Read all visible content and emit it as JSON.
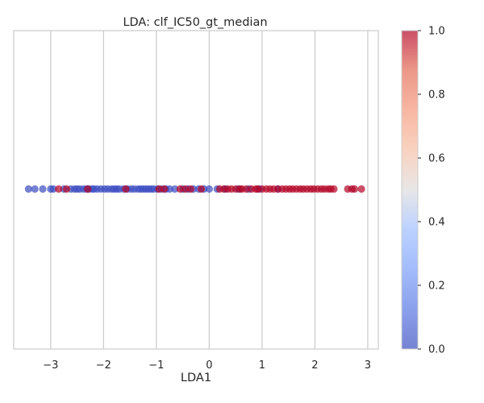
{
  "chart_data": {
    "type": "scatter",
    "title": "LDA: clf_IC50_gt_median",
    "xlabel": "LDA1",
    "ylabel": "",
    "xlim": [
      -3.7,
      3.2
    ],
    "x_ticks": [
      "−3",
      "−2",
      "−1",
      "0",
      "1",
      "2",
      "3"
    ],
    "x_tick_values": [
      -3,
      -2,
      -1,
      0,
      1,
      2,
      3
    ],
    "y_ticks": [],
    "grid": true,
    "y_constant": 0,
    "marker_alpha": 0.7,
    "colormap": "coolwarm",
    "colorbar": {
      "range": [
        0.0,
        1.0
      ],
      "ticks": [
        "0.0",
        "0.2",
        "0.4",
        "0.6",
        "0.8",
        "1.0"
      ],
      "tick_values": [
        0.0,
        0.2,
        0.4,
        0.6,
        0.8,
        1.0
      ]
    },
    "class0_color": "#3b4cc0",
    "class1_color": "#b40426",
    "series": [
      {
        "class": 0,
        "x": [
          -3.42,
          -3.3,
          -3.15,
          -3.0,
          -2.95,
          -2.75,
          -2.62,
          -2.55,
          -2.5,
          -2.45,
          -2.38,
          -2.32,
          -2.28,
          -2.22,
          -2.18,
          -2.12,
          -2.05,
          -1.98,
          -1.92,
          -1.85,
          -1.8,
          -1.75,
          -1.7,
          -1.62,
          -1.55,
          -1.48,
          -1.42,
          -1.35,
          -1.3,
          -1.25,
          -1.2,
          -1.15,
          -1.1,
          -1.05,
          -0.98,
          -0.9,
          -0.82,
          -0.75,
          -0.65,
          -0.5,
          -0.4,
          -0.3,
          -0.2,
          -0.1,
          0.0,
          0.15,
          0.3,
          0.55,
          0.75,
          0.95,
          1.3
        ]
      },
      {
        "class": 1,
        "x": [
          -2.85,
          -2.7,
          -2.3,
          -1.58,
          -0.95,
          -0.85,
          -0.55,
          -0.45,
          -0.35,
          -0.15,
          0.2,
          0.28,
          0.35,
          0.42,
          0.5,
          0.58,
          0.62,
          0.7,
          0.8,
          0.88,
          0.92,
          1.0,
          1.08,
          1.15,
          1.22,
          1.3,
          1.38,
          1.45,
          1.52,
          1.58,
          1.65,
          1.72,
          1.78,
          1.85,
          1.92,
          1.98,
          2.05,
          2.12,
          2.18,
          2.25,
          2.3,
          2.36,
          2.62,
          2.7,
          2.75,
          2.88
        ]
      }
    ]
  }
}
